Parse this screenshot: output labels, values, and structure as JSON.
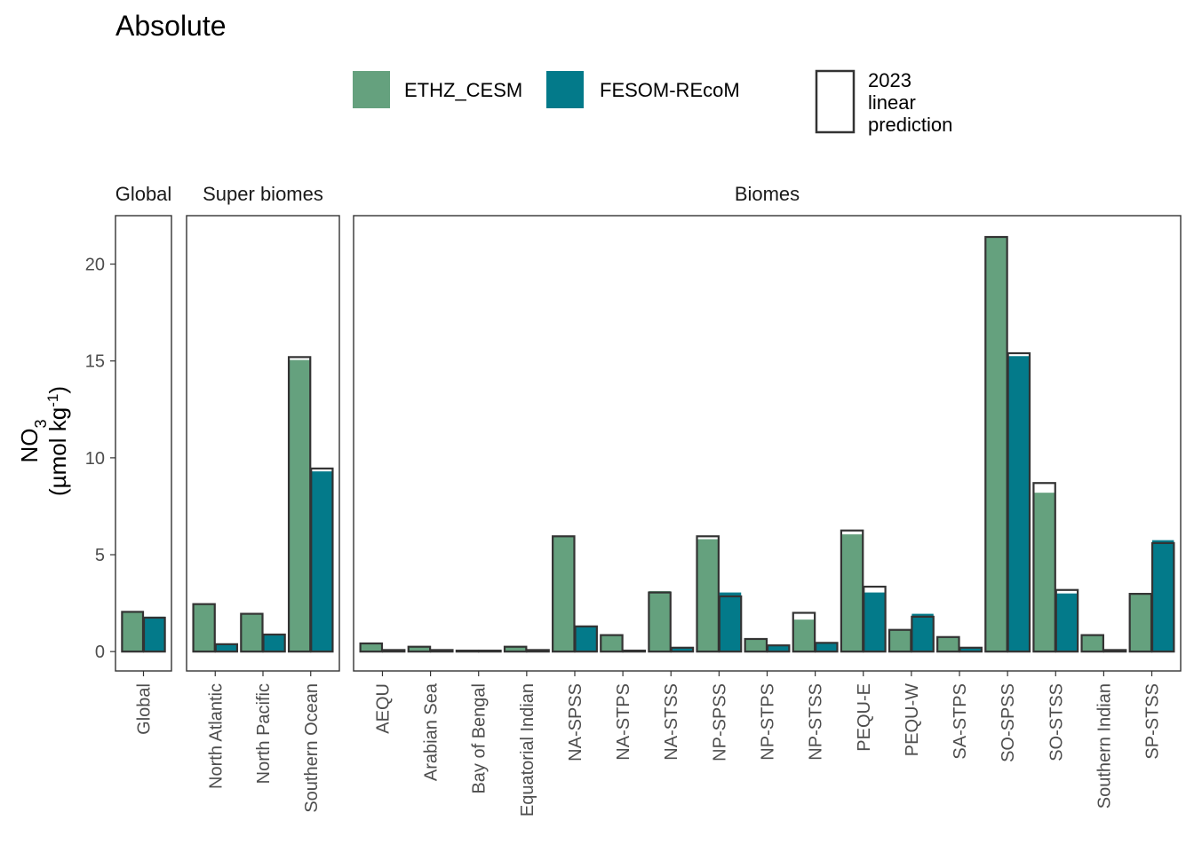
{
  "chart_data": {
    "type": "bar",
    "title": "Absolute",
    "ylabel": {
      "main": "NO",
      "sub": "3",
      "unit_prefix": "(µmol kg",
      "unit_sup": "-1",
      "unit_suffix": ")"
    },
    "ylim": [
      -1,
      22.5
    ],
    "yticks": [
      0,
      5,
      10,
      15,
      20
    ],
    "grid": false,
    "legend_position": "top",
    "legend": {
      "series": [
        {
          "name": "ETHZ_CESM",
          "color": "#65a17e"
        },
        {
          "name": "FESOM-REcoM",
          "color": "#037a8a"
        }
      ],
      "prediction_label": [
        "2023",
        "linear",
        "prediction"
      ]
    },
    "colors": {
      "ETHZ_CESM": "#65a17e",
      "FESOM-REcoM": "#037a8a",
      "outline": "#333333"
    },
    "panels": [
      {
        "label": "Global",
        "categories": [
          "Global"
        ],
        "series": [
          {
            "name": "ETHZ_CESM",
            "values": [
              2.05
            ],
            "prediction": [
              2.05
            ]
          },
          {
            "name": "FESOM-REcoM",
            "values": [
              1.8
            ],
            "prediction": [
              1.75
            ]
          }
        ]
      },
      {
        "label": "Super biomes",
        "categories": [
          "North Atlantic",
          "North Pacific",
          "Southern Ocean"
        ],
        "series": [
          {
            "name": "ETHZ_CESM",
            "values": [
              2.45,
              1.95,
              15.05
            ],
            "prediction": [
              2.45,
              1.95,
              15.2
            ]
          },
          {
            "name": "FESOM-REcoM",
            "values": [
              0.4,
              0.9,
              9.3
            ],
            "prediction": [
              0.38,
              0.88,
              9.45
            ]
          }
        ]
      },
      {
        "label": "Biomes",
        "categories": [
          "AEQU",
          "Arabian Sea",
          "Bay of Bengal",
          "Equatorial Indian",
          "NA-SPSS",
          "NA-STPS",
          "NA-STSS",
          "NP-SPSS",
          "NP-STPS",
          "NP-STSS",
          "PEQU-E",
          "PEQU-W",
          "SA-STPS",
          "SO-SPSS",
          "SO-STSS",
          "Southern Indian",
          "SP-STSS"
        ],
        "series": [
          {
            "name": "ETHZ_CESM",
            "values": [
              0.45,
              0.28,
              0.06,
              0.28,
              5.95,
              0.85,
              3.12,
              5.8,
              0.65,
              1.65,
              6.05,
              1.12,
              0.75,
              21.4,
              8.2,
              0.85,
              2.98
            ],
            "prediction": [
              0.42,
              0.25,
              0.05,
              0.25,
              5.95,
              0.85,
              3.05,
              5.95,
              0.65,
              2.0,
              6.25,
              1.12,
              0.75,
              21.4,
              8.7,
              0.85,
              2.98
            ]
          },
          {
            "name": "FESOM-REcoM",
            "values": [
              0.08,
              0.08,
              0.05,
              0.08,
              1.3,
              0.05,
              0.2,
              3.05,
              0.32,
              0.45,
              3.05,
              1.95,
              0.2,
              15.25,
              3.0,
              0.08,
              5.75
            ],
            "prediction": [
              0.08,
              0.08,
              0.05,
              0.08,
              1.3,
              0.05,
              0.2,
              2.85,
              0.32,
              0.45,
              3.35,
              1.8,
              0.2,
              15.4,
              3.18,
              0.08,
              5.6
            ]
          }
        ]
      }
    ]
  }
}
